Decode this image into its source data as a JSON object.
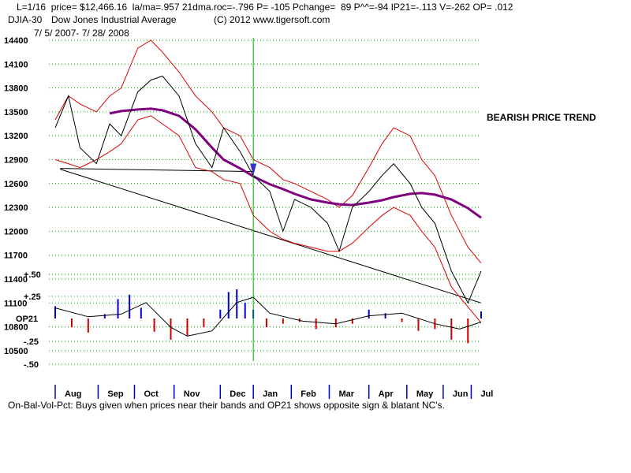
{
  "header": {
    "line1": "L=1/16  price= $12,466.16  la/ma=.957 21dma.roc=-.796 P= -105 Pchange=  89 P^^=-94 IP21=-.113 V=-262 OP= .012",
    "symbol": "DJIA-30",
    "name": "Dow Jones Industrial Average",
    "copyright": "(C) 2012 www.tigersoft.com",
    "date_range": "7/ 5/ 2007- 7/ 28/ 2008"
  },
  "annotation": "BEARISH PRICE TREND",
  "footer": "On-Bal-Vol-Pct: Buys given when prices near their bands and OP21 shows opposite sign & blatant NC's.",
  "colors": {
    "price": "#000000",
    "bands": "#dd0000",
    "ma200": "#800080",
    "grid": "#00aa00",
    "pos_bar": "#0000dd",
    "neg_bar": "#cc0000",
    "marker": "#00aa00"
  },
  "chart_data": [
    {
      "type": "line",
      "title": "DJIA-30 Dow Jones Industrial Average",
      "yticks": [
        "14400",
        "14100",
        "13800",
        "13500",
        "13200",
        "12900",
        "12600",
        "12300",
        "12000",
        "11700",
        "11400",
        "11100",
        "10800",
        "10500"
      ],
      "ylim": [
        10500,
        14400
      ],
      "months": [
        "Aug",
        "Sep",
        "Oct",
        "Nov",
        "Dec",
        "Jan",
        "Feb",
        "Mar",
        "Apr",
        "May",
        "Jun",
        "Jul"
      ],
      "x": [
        0,
        8,
        15,
        25,
        33,
        40,
        50,
        58,
        65,
        75,
        85,
        95,
        102,
        112,
        120,
        130,
        138,
        145,
        155,
        165,
        172,
        180,
        190,
        198,
        205,
        215,
        222,
        230,
        240,
        250,
        258
      ],
      "price": [
        13300,
        13700,
        13050,
        12850,
        13350,
        13200,
        13750,
        13900,
        13950,
        13700,
        13100,
        12800,
        13300,
        13000,
        12700,
        12500,
        12000,
        12400,
        12300,
        12100,
        11750,
        12300,
        12500,
        12700,
        12850,
        12600,
        12300,
        12100,
        11500,
        11100,
        11500
      ],
      "ma200": [
        null,
        null,
        null,
        null,
        13480,
        13510,
        13530,
        13540,
        13520,
        13450,
        13280,
        13050,
        12900,
        12790,
        12690,
        12590,
        12530,
        12470,
        12400,
        12360,
        12340,
        12330,
        12360,
        12390,
        12430,
        12470,
        12480,
        12460,
        12400,
        12290,
        12170
      ],
      "upper_band": [
        13400,
        13700,
        13600,
        13500,
        13700,
        13800,
        14300,
        14400,
        14250,
        14000,
        13700,
        13500,
        13300,
        13200,
        12900,
        12800,
        12650,
        12600,
        12500,
        12400,
        12300,
        12450,
        12800,
        13100,
        13300,
        13200,
        12900,
        12700,
        12200,
        11800,
        11600
      ],
      "lower_band": [
        12900,
        12850,
        12800,
        12900,
        13000,
        13100,
        13400,
        13450,
        13350,
        13200,
        12800,
        12750,
        12650,
        12600,
        12200,
        12000,
        11900,
        11850,
        11800,
        11750,
        11750,
        11850,
        12050,
        12200,
        12300,
        12200,
        12000,
        11800,
        11300,
        11050,
        10850
      ],
      "support_line": {
        "from": [
          3,
          12780
        ],
        "to": [
          258,
          11100
        ]
      },
      "flat_support": {
        "from": [
          3,
          12790
        ],
        "to": [
          120,
          12750
        ]
      },
      "vertical_marker_x": 120
    },
    {
      "type": "bar",
      "title": "OP21",
      "yticks": [
        "+.50",
        "+.25",
        "OP21",
        "-.25",
        "-.50"
      ],
      "ylim": [
        -0.5,
        0.5
      ],
      "x": [
        0,
        10,
        20,
        30,
        38,
        45,
        52,
        60,
        70,
        80,
        90,
        100,
        105,
        110,
        115,
        120,
        128,
        138,
        148,
        158,
        170,
        180,
        190,
        200,
        210,
        220,
        230,
        240,
        250,
        258
      ],
      "values": [
        0.14,
        -0.1,
        -0.16,
        0.05,
        0.22,
        0.27,
        0.12,
        -0.15,
        -0.24,
        -0.2,
        -0.1,
        0.1,
        0.3,
        0.33,
        0.18,
        0.1,
        -0.1,
        -0.06,
        -0.04,
        -0.12,
        -0.1,
        -0.06,
        0.1,
        0.06,
        -0.04,
        -0.14,
        -0.12,
        -0.24,
        -0.28,
        0.08
      ],
      "osc_x": [
        0,
        20,
        40,
        55,
        70,
        80,
        95,
        110,
        120,
        130,
        150,
        170,
        190,
        210,
        230,
        245,
        258
      ],
      "oscillator": [
        0.12,
        0.02,
        0.05,
        0.18,
        -0.1,
        -0.2,
        -0.14,
        0.18,
        0.24,
        0.06,
        -0.03,
        -0.06,
        0.03,
        0.06,
        -0.06,
        -0.12,
        -0.04
      ]
    }
  ]
}
